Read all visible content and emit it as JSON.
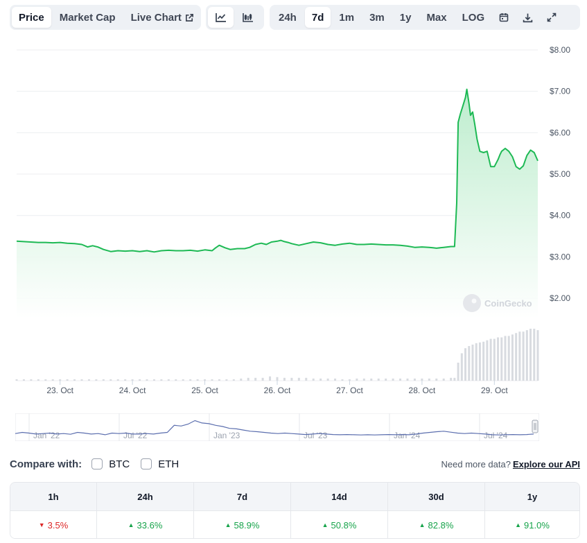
{
  "toolbar": {
    "tabs": [
      {
        "label": "Price",
        "active": true
      },
      {
        "label": "Market Cap",
        "active": false
      },
      {
        "label": "Live Chart",
        "active": false
      }
    ],
    "chart_types": [
      {
        "icon": "line-chart-icon",
        "active": true
      },
      {
        "icon": "candlestick-icon",
        "active": false
      }
    ],
    "ranges": [
      {
        "label": "24h",
        "active": false
      },
      {
        "label": "7d",
        "active": true
      },
      {
        "label": "1m",
        "active": false
      },
      {
        "label": "3m",
        "active": false
      },
      {
        "label": "1y",
        "active": false
      },
      {
        "label": "Max",
        "active": false
      },
      {
        "label": "LOG",
        "active": false
      }
    ],
    "tool_icons": [
      "calendar-icon",
      "download-icon",
      "expand-icon"
    ]
  },
  "chart_data": {
    "type": "area",
    "watermark": "CoinGecko",
    "y_ticks": [
      "$8.00",
      "$7.00",
      "$6.00",
      "$5.00",
      "$4.00",
      "$3.00",
      "$2.00"
    ],
    "ylim": [
      1.5,
      8.2
    ],
    "x_ticks": [
      "23. Oct",
      "24. Oct",
      "25. Oct",
      "26. Oct",
      "27. Oct",
      "28. Oct",
      "29. Oct"
    ],
    "x_range_days": [
      22.4,
      29.6
    ],
    "grid": true,
    "colors": {
      "line": "#1db954",
      "fill_top": "#b6ebc8",
      "fill_bottom": "#ffffff",
      "volume": "#d8dbe0",
      "grid": "#eceef1"
    },
    "series": [
      {
        "values": [
          [
            22.4,
            3.38
          ],
          [
            22.5,
            3.37
          ],
          [
            22.6,
            3.36
          ],
          [
            22.7,
            3.35
          ],
          [
            22.8,
            3.35
          ],
          [
            22.9,
            3.34
          ],
          [
            23.0,
            3.35
          ],
          [
            23.1,
            3.33
          ],
          [
            23.2,
            3.32
          ],
          [
            23.3,
            3.3
          ],
          [
            23.38,
            3.24
          ],
          [
            23.45,
            3.27
          ],
          [
            23.52,
            3.24
          ],
          [
            23.6,
            3.18
          ],
          [
            23.7,
            3.13
          ],
          [
            23.8,
            3.15
          ],
          [
            23.9,
            3.14
          ],
          [
            24.0,
            3.15
          ],
          [
            24.1,
            3.13
          ],
          [
            24.2,
            3.15
          ],
          [
            24.3,
            3.12
          ],
          [
            24.4,
            3.15
          ],
          [
            24.5,
            3.16
          ],
          [
            24.6,
            3.15
          ],
          [
            24.7,
            3.15
          ],
          [
            24.8,
            3.16
          ],
          [
            24.9,
            3.14
          ],
          [
            25.0,
            3.17
          ],
          [
            25.1,
            3.15
          ],
          [
            25.15,
            3.22
          ],
          [
            25.2,
            3.28
          ],
          [
            25.28,
            3.22
          ],
          [
            25.35,
            3.18
          ],
          [
            25.45,
            3.2
          ],
          [
            25.55,
            3.2
          ],
          [
            25.62,
            3.23
          ],
          [
            25.7,
            3.3
          ],
          [
            25.78,
            3.33
          ],
          [
            25.85,
            3.3
          ],
          [
            25.92,
            3.36
          ],
          [
            26.0,
            3.38
          ],
          [
            26.05,
            3.4
          ],
          [
            26.1,
            3.37
          ],
          [
            26.15,
            3.35
          ],
          [
            26.2,
            3.32
          ],
          [
            26.3,
            3.28
          ],
          [
            26.4,
            3.32
          ],
          [
            26.5,
            3.36
          ],
          [
            26.6,
            3.34
          ],
          [
            26.7,
            3.3
          ],
          [
            26.8,
            3.28
          ],
          [
            26.9,
            3.31
          ],
          [
            27.0,
            3.33
          ],
          [
            27.1,
            3.3
          ],
          [
            27.2,
            3.3
          ],
          [
            27.3,
            3.31
          ],
          [
            27.4,
            3.3
          ],
          [
            27.5,
            3.29
          ],
          [
            27.6,
            3.29
          ],
          [
            27.7,
            3.28
          ],
          [
            27.8,
            3.26
          ],
          [
            27.9,
            3.23
          ],
          [
            28.0,
            3.24
          ],
          [
            28.1,
            3.23
          ],
          [
            28.15,
            3.22
          ],
          [
            28.2,
            3.21
          ],
          [
            28.3,
            3.23
          ],
          [
            28.4,
            3.25
          ],
          [
            28.45,
            3.25
          ],
          [
            28.48,
            4.3
          ],
          [
            28.5,
            6.25
          ],
          [
            28.53,
            6.45
          ],
          [
            28.56,
            6.62
          ],
          [
            28.6,
            6.85
          ],
          [
            28.62,
            7.05
          ],
          [
            28.65,
            6.7
          ],
          [
            28.67,
            6.42
          ],
          [
            28.7,
            6.5
          ],
          [
            28.73,
            6.2
          ],
          [
            28.76,
            5.85
          ],
          [
            28.8,
            5.55
          ],
          [
            28.85,
            5.52
          ],
          [
            28.9,
            5.55
          ],
          [
            28.95,
            5.18
          ],
          [
            29.0,
            5.18
          ],
          [
            29.05,
            5.35
          ],
          [
            29.08,
            5.48
          ],
          [
            29.1,
            5.55
          ],
          [
            29.15,
            5.62
          ],
          [
            29.2,
            5.55
          ],
          [
            29.25,
            5.42
          ],
          [
            29.3,
            5.18
          ],
          [
            29.35,
            5.12
          ],
          [
            29.4,
            5.2
          ],
          [
            29.45,
            5.45
          ],
          [
            29.5,
            5.58
          ],
          [
            29.55,
            5.52
          ],
          [
            29.6,
            5.32
          ]
        ]
      }
    ],
    "volume": [
      [
        22.4,
        2
      ],
      [
        22.5,
        2
      ],
      [
        22.6,
        2
      ],
      [
        22.7,
        2
      ],
      [
        22.8,
        2
      ],
      [
        22.9,
        2
      ],
      [
        23.0,
        2
      ],
      [
        23.1,
        2
      ],
      [
        23.2,
        2
      ],
      [
        23.3,
        2
      ],
      [
        23.4,
        2
      ],
      [
        23.5,
        2
      ],
      [
        23.6,
        2
      ],
      [
        23.7,
        2
      ],
      [
        23.8,
        2
      ],
      [
        23.9,
        2
      ],
      [
        24.0,
        2
      ],
      [
        24.1,
        2
      ],
      [
        24.2,
        2
      ],
      [
        24.3,
        2
      ],
      [
        24.4,
        2
      ],
      [
        24.5,
        2
      ],
      [
        24.6,
        2
      ],
      [
        24.7,
        2
      ],
      [
        24.8,
        2
      ],
      [
        24.9,
        2
      ],
      [
        25.0,
        2
      ],
      [
        25.1,
        2
      ],
      [
        25.2,
        2
      ],
      [
        25.3,
        2
      ],
      [
        25.4,
        2
      ],
      [
        25.5,
        3
      ],
      [
        25.6,
        4
      ],
      [
        25.7,
        4
      ],
      [
        25.8,
        4
      ],
      [
        25.9,
        6
      ],
      [
        26.0,
        5
      ],
      [
        26.1,
        4
      ],
      [
        26.2,
        4
      ],
      [
        26.3,
        4
      ],
      [
        26.4,
        4
      ],
      [
        26.5,
        3
      ],
      [
        26.6,
        3
      ],
      [
        26.7,
        3
      ],
      [
        26.8,
        3
      ],
      [
        26.9,
        2
      ],
      [
        27.0,
        2
      ],
      [
        27.1,
        3
      ],
      [
        27.2,
        3
      ],
      [
        27.3,
        3
      ],
      [
        27.4,
        3
      ],
      [
        27.5,
        3
      ],
      [
        27.6,
        3
      ],
      [
        27.7,
        3
      ],
      [
        27.8,
        3
      ],
      [
        27.9,
        3
      ],
      [
        28.0,
        3
      ],
      [
        28.1,
        3
      ],
      [
        28.2,
        3
      ],
      [
        28.3,
        3
      ],
      [
        28.4,
        4
      ],
      [
        28.45,
        4
      ],
      [
        28.5,
        25
      ],
      [
        28.55,
        38
      ],
      [
        28.6,
        45
      ],
      [
        28.65,
        48
      ],
      [
        28.7,
        50
      ],
      [
        28.75,
        52
      ],
      [
        28.8,
        53
      ],
      [
        28.85,
        54
      ],
      [
        28.9,
        56
      ],
      [
        28.95,
        58
      ],
      [
        29.0,
        58
      ],
      [
        29.05,
        60
      ],
      [
        29.1,
        60
      ],
      [
        29.15,
        62
      ],
      [
        29.2,
        62
      ],
      [
        29.25,
        64
      ],
      [
        29.3,
        66
      ],
      [
        29.35,
        68
      ],
      [
        29.4,
        68
      ],
      [
        29.45,
        70
      ],
      [
        29.5,
        72
      ],
      [
        29.55,
        72
      ],
      [
        29.6,
        70
      ]
    ]
  },
  "navigator": {
    "labels": [
      "Jan '22",
      "Jul '22",
      "Jan '23",
      "Jul '23",
      "Jan '24",
      "Jul '24"
    ],
    "series": [
      0.2,
      0.25,
      0.22,
      0.18,
      0.2,
      0.22,
      0.18,
      0.2,
      0.17,
      0.25,
      0.22,
      0.18,
      0.2,
      0.15,
      0.22,
      0.2,
      0.22,
      0.18,
      0.18,
      0.2,
      0.18,
      0.22,
      0.25,
      0.55,
      0.52,
      0.6,
      0.75,
      0.65,
      0.62,
      0.55,
      0.5,
      0.42,
      0.4,
      0.35,
      0.3,
      0.28,
      0.25,
      0.22,
      0.2,
      0.22,
      0.2,
      0.18,
      0.16,
      0.18,
      0.2,
      0.18,
      0.16,
      0.15,
      0.16,
      0.15,
      0.14,
      0.15,
      0.14,
      0.15,
      0.16,
      0.15,
      0.16,
      0.15,
      0.18,
      0.22,
      0.25,
      0.28,
      0.3,
      0.26,
      0.22,
      0.2,
      0.22,
      0.2,
      0.18,
      0.15,
      0.14,
      0.15,
      0.16,
      0.15,
      0.16,
      0.18
    ],
    "line_color": "#5b6eae"
  },
  "compare": {
    "label": "Compare with:",
    "options": [
      {
        "label": "BTC",
        "checked": false
      },
      {
        "label": "ETH",
        "checked": false
      }
    ],
    "more_text": "Need more data?",
    "link_text": "Explore our API"
  },
  "performance": {
    "headers": [
      "1h",
      "24h",
      "7d",
      "14d",
      "30d",
      "1y"
    ],
    "values": [
      {
        "text": "3.5%",
        "dir": "down"
      },
      {
        "text": "33.6%",
        "dir": "up"
      },
      {
        "text": "58.9%",
        "dir": "up"
      },
      {
        "text": "50.8%",
        "dir": "up"
      },
      {
        "text": "82.8%",
        "dir": "up"
      },
      {
        "text": "91.0%",
        "dir": "up"
      }
    ]
  }
}
